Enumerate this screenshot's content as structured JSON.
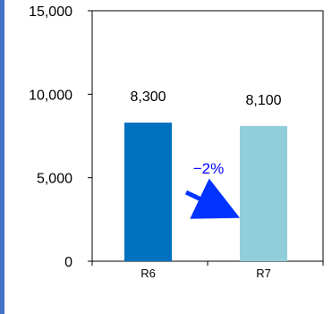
{
  "chart_data": {
    "type": "bar",
    "categories": [
      "R6",
      "R7"
    ],
    "values": [
      8300,
      8100
    ],
    "value_labels": [
      "8,300",
      "8,100"
    ],
    "ylim": [
      0,
      15000
    ],
    "yticks": [
      0,
      5000,
      10000,
      15000
    ],
    "ytick_labels": [
      "0",
      "5,000",
      "10,000",
      "15,000"
    ],
    "grid": false,
    "bar_colors": [
      "#0070c0",
      "#92cddc"
    ],
    "annotation": {
      "text": "−2%",
      "color": "#0000ff"
    }
  },
  "colors": {
    "frame_border": "#4472c4",
    "axis": "#000000",
    "arrow": "#0033ff"
  }
}
